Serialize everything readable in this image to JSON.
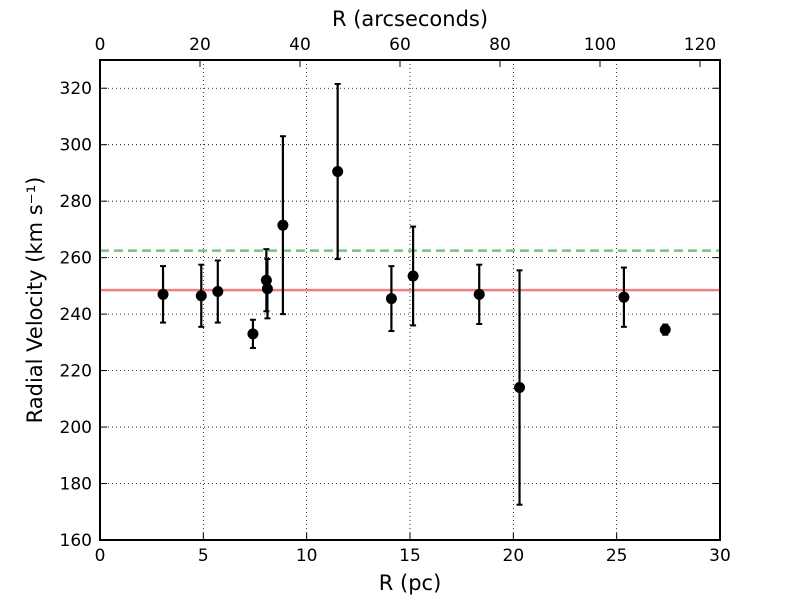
{
  "chart_data": {
    "type": "scatter",
    "xlabel": "R (pc)",
    "ylabel": "Radial Velocity (km s⁻¹)",
    "top_xlabel": "R (arcseconds)",
    "xlim": [
      0,
      30
    ],
    "ylim": [
      160,
      330
    ],
    "top_xlim": [
      0,
      124
    ],
    "x_ticks": [
      0,
      5,
      10,
      15,
      20,
      25,
      30
    ],
    "y_ticks": [
      160,
      180,
      200,
      220,
      240,
      260,
      280,
      300,
      320
    ],
    "top_x_ticks": [
      0,
      20,
      40,
      60,
      80,
      100,
      120
    ],
    "grid": true,
    "points": [
      {
        "x": 3.05,
        "y": 247,
        "err": 10
      },
      {
        "x": 4.9,
        "y": 246.5,
        "err": 11
      },
      {
        "x": 5.7,
        "y": 248,
        "err": 11
      },
      {
        "x": 7.4,
        "y": 233,
        "err": 5
      },
      {
        "x": 8.05,
        "y": 252,
        "err": 11
      },
      {
        "x": 8.1,
        "y": 249,
        "err": 10.5
      },
      {
        "x": 8.85,
        "y": 271.5,
        "err": 31.5
      },
      {
        "x": 11.5,
        "y": 290.5,
        "err": 31
      },
      {
        "x": 14.1,
        "y": 245.5,
        "err": 11.5
      },
      {
        "x": 15.15,
        "y": 253.5,
        "err": 17.5
      },
      {
        "x": 18.35,
        "y": 247,
        "err": 10.5
      },
      {
        "x": 20.3,
        "y": 214,
        "err": 41.5
      },
      {
        "x": 25.35,
        "y": 246,
        "err": 10.5
      },
      {
        "x": 27.35,
        "y": 234.5,
        "err": 1.8
      }
    ],
    "reference_lines": [
      {
        "y": 248.5,
        "style": "solid",
        "color": "#f08080"
      },
      {
        "y": 262.5,
        "style": "dashed",
        "color": "#7fbf7f"
      }
    ]
  }
}
